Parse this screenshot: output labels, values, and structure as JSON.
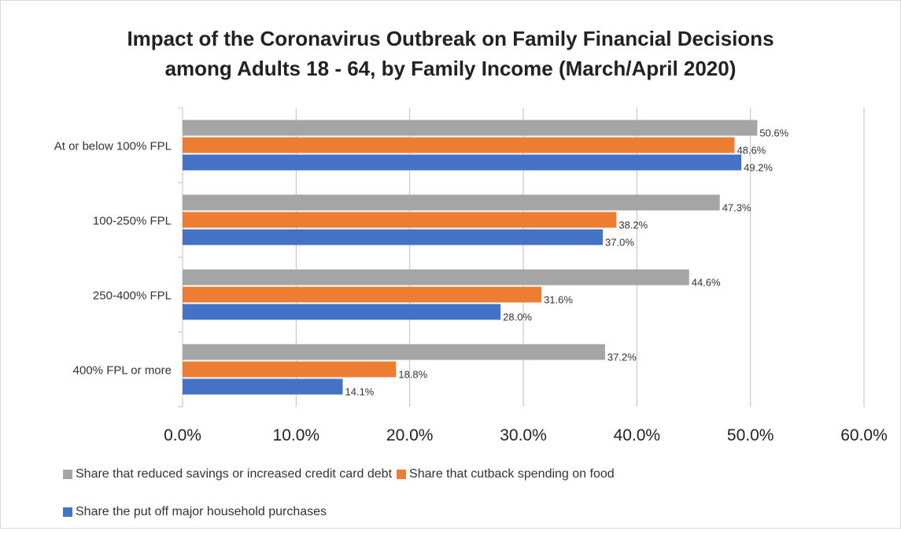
{
  "chart_data": {
    "type": "bar",
    "orientation": "horizontal",
    "title_line1": "Impact of the Coronavirus Outbreak on Family Financial Decisions",
    "title_line2": "among Adults 18 - 64, by Family Income (March/April 2020)",
    "categories": [
      "At or below 100% FPL",
      "100-250% FPL",
      "250-400% FPL",
      "400% FPL or more"
    ],
    "series": [
      {
        "name": "Share that reduced savings or increased credit card debt",
        "color": "#a5a5a5",
        "values": [
          50.6,
          47.3,
          44.6,
          37.2
        ],
        "labels": [
          "50.6%",
          "47.3%",
          "44.6%",
          "37.2%"
        ]
      },
      {
        "name": "Share that cutback spending on food",
        "color": "#ed7d31",
        "values": [
          48.6,
          38.2,
          31.6,
          18.8
        ],
        "labels": [
          "48.6%",
          "38.2%",
          "31.6%",
          "18.8%"
        ]
      },
      {
        "name": "Share the put off major household purchases",
        "color": "#4472c4",
        "values": [
          49.2,
          37.0,
          28.0,
          14.1
        ],
        "labels": [
          "49.2%",
          "37.0%",
          "28.0%",
          "14.1%"
        ]
      }
    ],
    "xlim": [
      0,
      60
    ],
    "x_ticks": [
      0,
      10,
      20,
      30,
      40,
      50,
      60
    ],
    "x_tick_labels": [
      "0.0%",
      "10.0%",
      "20.0%",
      "30.0%",
      "40.0%",
      "50.0%",
      "60.0%"
    ],
    "grid": true,
    "legend_position": "bottom-left"
  }
}
